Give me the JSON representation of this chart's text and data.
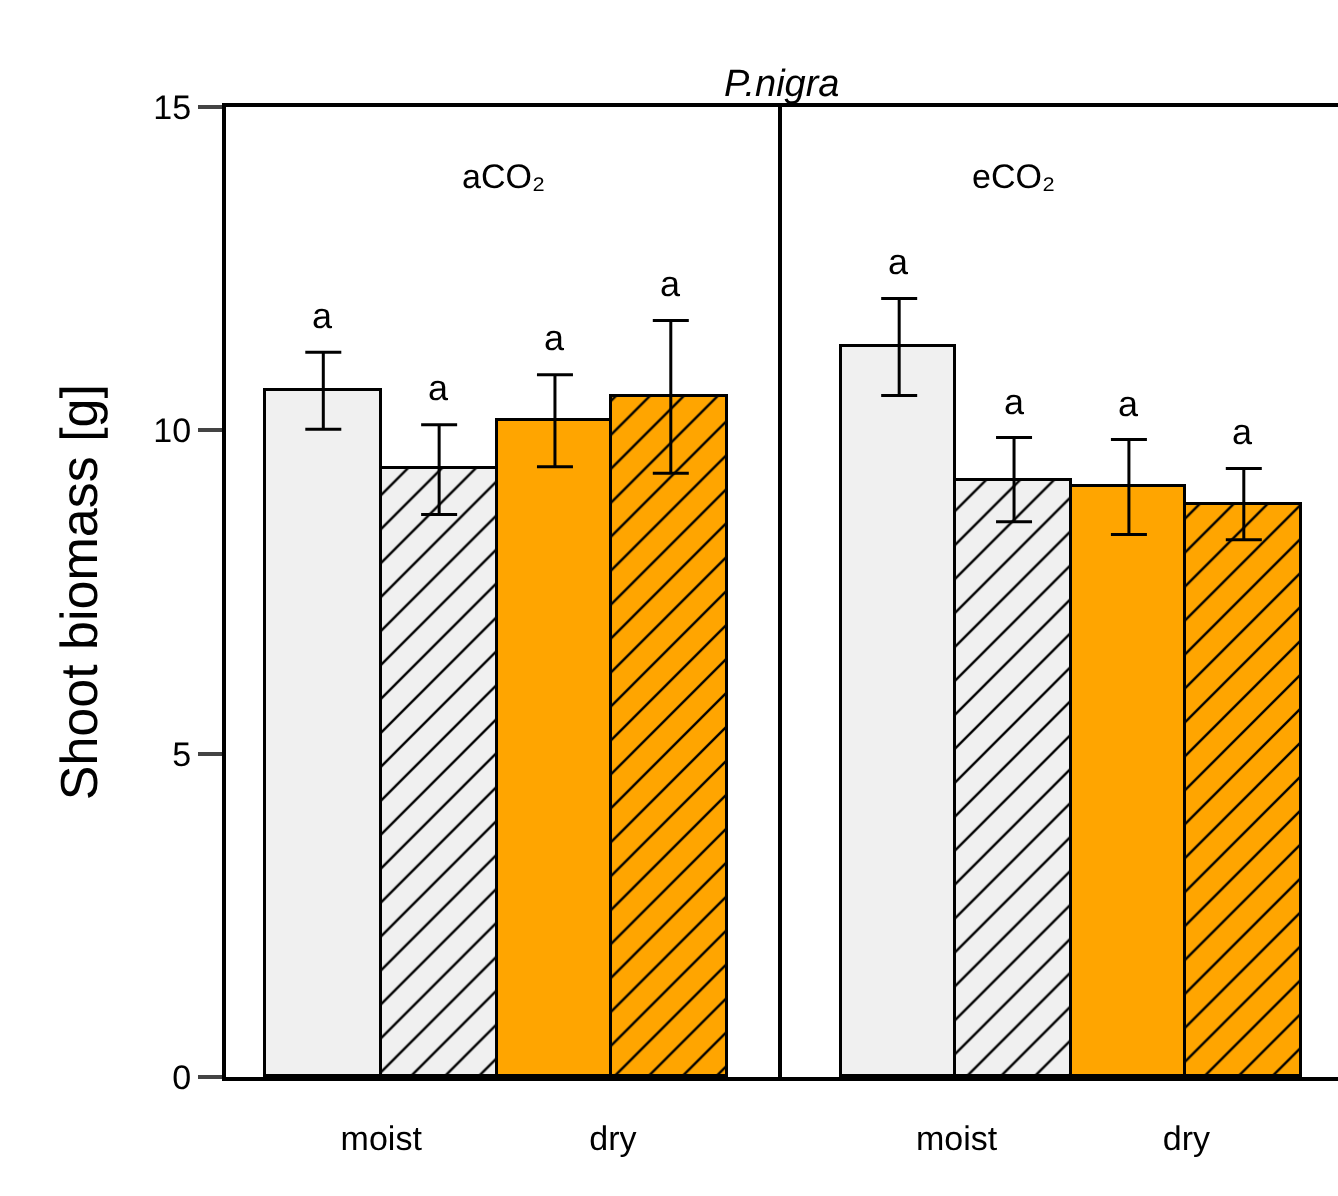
{
  "chart_data": [
    {
      "type": "bar",
      "title": "P.nigra",
      "subtitle": "aCO₂",
      "ylabel": "Shoot biomass [g]",
      "categories": [
        "moist",
        "dry"
      ],
      "ylim": [
        0,
        15
      ],
      "yticks": [
        0,
        5,
        10,
        15
      ],
      "series": [
        {
          "colors": [
            "#f0f0f0",
            "#ffa500"
          ],
          "values": [
            10.62,
            10.14
          ],
          "errors": [
            [
              10.02,
              11.21
            ],
            [
              9.44,
              10.86
            ]
          ],
          "value_labels": [
            "a",
            "a"
          ]
        },
        {
          "colors": [
            "#f0f0f0",
            "#ffa500"
          ],
          "values": [
            9.41,
            10.52
          ],
          "errors": [
            [
              8.7,
              10.09
            ],
            [
              9.34,
              11.7
            ]
          ],
          "value_labels": [
            "a",
            "a"
          ]
        }
      ]
    },
    {
      "type": "bar",
      "subtitle": "eCO₂",
      "categories": [
        "moist",
        "dry"
      ],
      "ylim": [
        0,
        15
      ],
      "yticks": [
        0,
        5,
        10,
        15
      ],
      "tick_labels": "x",
      "series": [
        {
          "colors": [
            "#f0f0f0",
            "#ffa500"
          ],
          "values": [
            11.28,
            9.13
          ],
          "errors": [
            [
              10.54,
              12.04
            ],
            [
              8.39,
              9.86
            ]
          ],
          "value_labels": [
            "a",
            "a"
          ]
        },
        {
          "colors": [
            "#f0f0f0",
            "#ffa500"
          ],
          "values": [
            9.23,
            8.86
          ],
          "errors": [
            [
              8.59,
              9.89
            ],
            [
              8.31,
              9.41
            ]
          ],
          "value_labels": [
            "a",
            "a"
          ]
        }
      ]
    }
  ]
}
